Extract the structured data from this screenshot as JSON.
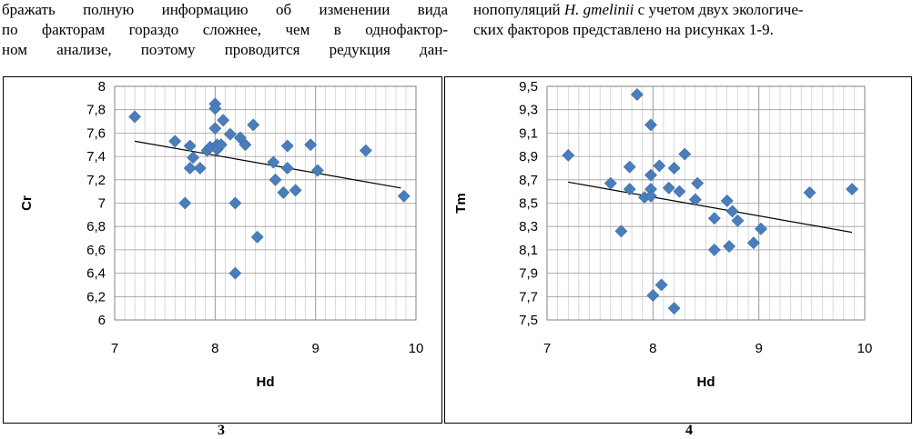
{
  "text": {
    "left_lines": [
      "бражать полную информацию об изменении вида",
      "по факторам гораздо сложнее, чем в однофактор-",
      "ном анализе, поэтому проводится редукция дан-"
    ],
    "right_line1_prefix": "нопопуляций ",
    "right_line1_species": "H. gmelinii",
    "right_line1_suffix": " с учетом двух экологиче-",
    "right_line2": "ских факторов представлено на рисунках 1-9."
  },
  "captions": [
    "3",
    "4"
  ],
  "colors": {
    "marker": "#4a7ebb",
    "grid": "#c0c0c0",
    "trend": "#000000"
  },
  "chart_data": [
    {
      "type": "scatter",
      "xlabel": "Hd",
      "ylabel": "Cr",
      "xlim": [
        7,
        10
      ],
      "ylim": [
        6,
        8
      ],
      "xticks": [
        "7",
        "8",
        "9",
        "10"
      ],
      "yticks": [
        "6",
        "6,2",
        "6,4",
        "6,6",
        "6,8",
        "7",
        "7,2",
        "7,4",
        "7,6",
        "7,8",
        "8"
      ],
      "grid": true,
      "trendline": [
        [
          7.2,
          7.53
        ],
        [
          9.85,
          7.13
        ]
      ],
      "points": [
        [
          7.2,
          7.74
        ],
        [
          7.6,
          7.53
        ],
        [
          7.7,
          7.0
        ],
        [
          7.75,
          7.49
        ],
        [
          7.75,
          7.3
        ],
        [
          7.78,
          7.39
        ],
        [
          7.85,
          7.3
        ],
        [
          7.92,
          7.45
        ],
        [
          7.95,
          7.48
        ],
        [
          8.0,
          7.85
        ],
        [
          8.0,
          7.81
        ],
        [
          8.0,
          7.64
        ],
        [
          8.02,
          7.5
        ],
        [
          8.02,
          7.46
        ],
        [
          8.06,
          7.5
        ],
        [
          8.08,
          7.71
        ],
        [
          8.15,
          7.59
        ],
        [
          8.2,
          7.0
        ],
        [
          8.2,
          6.4
        ],
        [
          8.25,
          7.56
        ],
        [
          8.3,
          7.5
        ],
        [
          8.38,
          7.67
        ],
        [
          8.42,
          6.71
        ],
        [
          8.58,
          7.35
        ],
        [
          8.6,
          7.2
        ],
        [
          8.68,
          7.09
        ],
        [
          8.72,
          7.49
        ],
        [
          8.72,
          7.3
        ],
        [
          8.8,
          7.11
        ],
        [
          8.95,
          7.5
        ],
        [
          9.02,
          7.28
        ],
        [
          9.5,
          7.45
        ],
        [
          9.88,
          7.06
        ]
      ]
    },
    {
      "type": "scatter",
      "xlabel": "Hd",
      "ylabel": "Tm",
      "xlim": [
        7,
        10
      ],
      "ylim": [
        7.5,
        9.5
      ],
      "xticks": [
        "7",
        "8",
        "9",
        "10"
      ],
      "yticks": [
        "7,5",
        "7,7",
        "7,9",
        "8,1",
        "8,3",
        "8,5",
        "8,7",
        "8,9",
        "9,1",
        "9,3",
        "9,5"
      ],
      "grid": true,
      "trendline": [
        [
          7.2,
          8.68
        ],
        [
          9.88,
          8.25
        ]
      ],
      "points": [
        [
          7.2,
          8.91
        ],
        [
          7.6,
          8.67
        ],
        [
          7.7,
          8.26
        ],
        [
          7.78,
          8.81
        ],
        [
          7.78,
          8.62
        ],
        [
          7.85,
          9.43
        ],
        [
          7.92,
          8.55
        ],
        [
          7.98,
          9.17
        ],
        [
          7.98,
          8.74
        ],
        [
          7.98,
          8.62
        ],
        [
          7.98,
          8.56
        ],
        [
          8.0,
          7.71
        ],
        [
          8.06,
          8.82
        ],
        [
          8.08,
          7.8
        ],
        [
          8.15,
          8.63
        ],
        [
          8.2,
          8.8
        ],
        [
          8.2,
          7.6
        ],
        [
          8.25,
          8.6
        ],
        [
          8.3,
          8.92
        ],
        [
          8.4,
          8.53
        ],
        [
          8.42,
          8.67
        ],
        [
          8.58,
          8.37
        ],
        [
          8.58,
          8.1
        ],
        [
          8.7,
          8.52
        ],
        [
          8.72,
          8.13
        ],
        [
          8.75,
          8.43
        ],
        [
          8.8,
          8.35
        ],
        [
          8.95,
          8.16
        ],
        [
          9.02,
          8.28
        ],
        [
          9.48,
          8.59
        ],
        [
          9.88,
          8.62
        ]
      ]
    }
  ]
}
